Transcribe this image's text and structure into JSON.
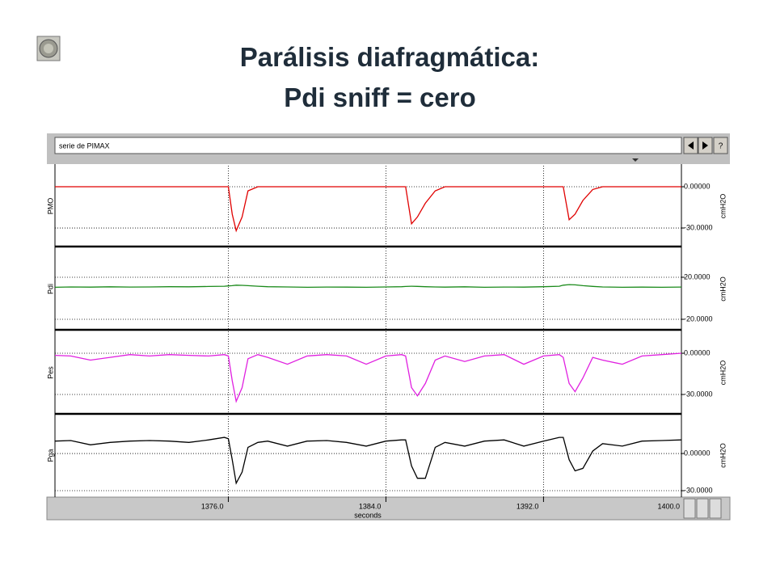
{
  "slide": {
    "title_lines": [
      "Parálisis diafragmática:",
      "Pdi sniff = cero"
    ]
  },
  "window": {
    "input_text": "serie de PIMAX",
    "help_button": "?"
  },
  "chart_data": [
    {
      "type": "line",
      "ylabel": "PMO",
      "y2label": "cmH2O",
      "x": [
        1367.2,
        1368,
        1369,
        1370,
        1371,
        1372,
        1373,
        1374,
        1375,
        1375.8,
        1376.0,
        1376.2,
        1376.4,
        1376.7,
        1377.0,
        1377.5,
        1378,
        1379,
        1380,
        1381,
        1382,
        1383,
        1384,
        1384.8,
        1385.0,
        1385.3,
        1385.6,
        1386.0,
        1386.5,
        1387,
        1388,
        1389,
        1390,
        1391,
        1392,
        1392.8,
        1393.0,
        1393.3,
        1393.6,
        1394.0,
        1394.5,
        1395,
        1396,
        1397,
        1398,
        1399
      ],
      "series": [
        {
          "name": "PMO",
          "color": "#e00000",
          "values": [
            0,
            0,
            0,
            0,
            0,
            0,
            0,
            0,
            0,
            0,
            0,
            -20,
            -32,
            -22,
            -3,
            0,
            0,
            0,
            0,
            0,
            0,
            0,
            0,
            0,
            0,
            -27,
            -22,
            -12,
            -3,
            0,
            0,
            0,
            0,
            0,
            0,
            0,
            0,
            -24,
            -20,
            -10,
            -2,
            0,
            0,
            0,
            0,
            0
          ]
        }
      ],
      "xlim": [
        1367.2,
        1399
      ],
      "ylim": [
        -43.5,
        15.3
      ],
      "yticks": [
        {
          "value": 0,
          "label": "0.00000"
        },
        {
          "value": -30,
          "label": "-30.0000"
        }
      ]
    },
    {
      "type": "line",
      "ylabel": "Pdi",
      "y2label": "cmH2O",
      "x": [
        1367.2,
        1368,
        1369,
        1370,
        1371,
        1372,
        1373,
        1374,
        1375,
        1375.8,
        1376.0,
        1376.2,
        1376.4,
        1376.7,
        1377.0,
        1377.5,
        1378,
        1379,
        1380,
        1381,
        1382,
        1383,
        1384,
        1384.8,
        1385.0,
        1385.3,
        1385.6,
        1386.0,
        1386.5,
        1387,
        1388,
        1389,
        1390,
        1391,
        1392,
        1392.8,
        1393.0,
        1393.3,
        1393.6,
        1394.0,
        1394.5,
        1395,
        1396,
        1397,
        1398,
        1399
      ],
      "series": [
        {
          "name": "Pdi",
          "color": "#1a8a1a",
          "values": [
            10.5,
            10.8,
            10.6,
            10.9,
            10.7,
            10.8,
            11,
            10.9,
            11.2,
            11.5,
            11.8,
            12,
            12.5,
            12.3,
            12,
            11.5,
            11,
            10.8,
            10.5,
            10.7,
            10.6,
            10.5,
            10.8,
            11,
            11.2,
            11.5,
            11.3,
            11,
            10.8,
            10.6,
            10.9,
            10.5,
            10.7,
            10.6,
            11,
            11.5,
            12.5,
            13,
            12.8,
            12,
            11.3,
            10.8,
            10.5,
            10.6,
            10.5,
            10.7
          ]
        }
      ],
      "xlim": [
        1367.2,
        1399
      ],
      "ylim": [
        -30,
        47.7
      ],
      "yticks": [
        {
          "value": 20,
          "label": "20.0000"
        },
        {
          "value": -20,
          "label": "-20.0000"
        }
      ]
    },
    {
      "type": "line",
      "ylabel": "Pes",
      "y2label": "cmH2O",
      "x": [
        1367.2,
        1368,
        1369,
        1370,
        1371,
        1372,
        1373,
        1374,
        1375,
        1375.8,
        1376.0,
        1376.2,
        1376.4,
        1376.7,
        1377.0,
        1377.5,
        1378,
        1379,
        1380,
        1381,
        1382,
        1383,
        1384,
        1384.8,
        1385.0,
        1385.3,
        1385.6,
        1386.0,
        1386.5,
        1387,
        1388,
        1389,
        1390,
        1391,
        1392,
        1392.8,
        1393.0,
        1393.3,
        1393.6,
        1394.0,
        1394.5,
        1395,
        1396,
        1397,
        1398,
        1399
      ],
      "series": [
        {
          "name": "Pes",
          "color": "#e020e0",
          "values": [
            -1.5,
            -2,
            -5,
            -3,
            -1,
            -2,
            -1,
            -1.5,
            -2,
            -1,
            -2,
            -20,
            -35,
            -25,
            -4,
            -1,
            -3,
            -8,
            -2,
            -1,
            -2,
            -8,
            -2,
            -1,
            -2,
            -25,
            -31,
            -22,
            -5,
            -2,
            -6,
            -2,
            -1,
            -8,
            -2,
            -1,
            -3,
            -22,
            -28,
            -18,
            -3,
            -5,
            -8,
            -2,
            -1,
            0
          ]
        }
      ],
      "xlim": [
        1367.2,
        1399
      ],
      "ylim": [
        -44.1,
        15.9
      ],
      "yticks": [
        {
          "value": 0,
          "label": "0.00000"
        },
        {
          "value": -30,
          "label": "-30.0000"
        }
      ]
    },
    {
      "type": "line",
      "ylabel": "Pga",
      "y2label": "cmH2O",
      "xlabel": "seconds",
      "x": [
        1367.2,
        1368,
        1369,
        1370,
        1371,
        1372,
        1373,
        1374,
        1375,
        1375.8,
        1376.0,
        1376.2,
        1376.4,
        1376.7,
        1377.0,
        1377.5,
        1378,
        1379,
        1380,
        1381,
        1382,
        1383,
        1384,
        1384.8,
        1385.0,
        1385.3,
        1385.6,
        1386.0,
        1386.5,
        1387,
        1388,
        1389,
        1390,
        1391,
        1392,
        1392.8,
        1393.0,
        1393.3,
        1393.6,
        1394.0,
        1394.5,
        1395,
        1396,
        1397,
        1398,
        1399
      ],
      "series": [
        {
          "name": "Pga",
          "color": "#000000",
          "values": [
            10,
            10.5,
            7,
            9,
            10,
            10.5,
            10,
            9,
            11,
            13,
            12,
            -5,
            -24,
            -15,
            5,
            9,
            10,
            6,
            10,
            10.5,
            9,
            6,
            10,
            11,
            11,
            -10,
            -20,
            -20,
            5,
            9,
            6,
            10,
            11,
            6,
            10,
            13,
            13,
            -5,
            -14,
            -12,
            2,
            8,
            6,
            10,
            10.5,
            11
          ]
        }
      ],
      "xlim": [
        1367.2,
        1399
      ],
      "ylim": [
        -35.2,
        32
      ],
      "xticks": [
        {
          "value": 1376,
          "label": "1376.0"
        },
        {
          "value": 1384,
          "label": "1384.0"
        },
        {
          "value": 1392,
          "label": "1392.0"
        },
        {
          "value": 1400,
          "label": "1400.0"
        }
      ],
      "yticks": [
        {
          "value": 0,
          "label": "0.00000"
        },
        {
          "value": -30,
          "label": "-30.0000"
        }
      ]
    }
  ]
}
